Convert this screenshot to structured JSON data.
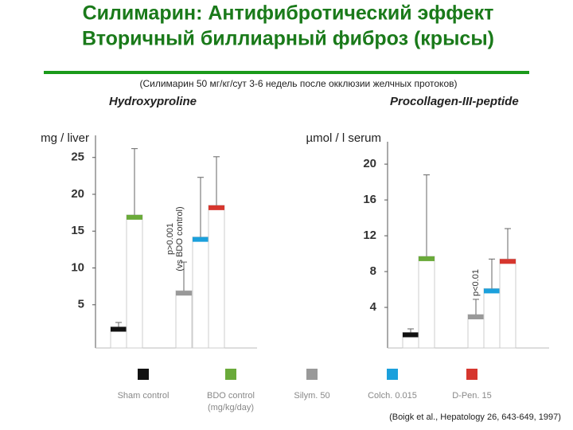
{
  "title": [
    "Силимарин: Антифибротический эффект",
    "Вторичный биллиарный фиброз (крысы)"
  ],
  "subtitle": "(Силимарин 50 мг/кг/сут 3-6 недель после окклюзии желчных протоков)",
  "legend": [
    {
      "label": "Sham control",
      "color": "#111111"
    },
    {
      "label": "BDO control",
      "color": "#6aaa3a"
    },
    {
      "label": "Silym. 50",
      "color": "#999999"
    },
    {
      "label": "Colch. 0.015",
      "color": "#1ba0dc"
    },
    {
      "label": "D-Pen. 15",
      "color": "#d6362e"
    }
  ],
  "legend_note": "(mg/kg/day)",
  "source": "(Boigk et al., Hepatology 26, 643-649, 1997)",
  "chart_data": [
    {
      "type": "bar",
      "title": "Hydroxyproline",
      "ylabel": "mg / liver",
      "values": [
        2.0,
        17.2,
        6.9,
        14.2,
        18.5
      ],
      "errors": [
        0.6,
        9.0,
        3.9,
        8.1,
        6.6
      ],
      "ylim": [
        0,
        28
      ],
      "yticks": [
        5,
        10,
        15,
        20,
        25
      ],
      "annotation": [
        "p>0.001",
        "(vs BDO control)"
      ]
    },
    {
      "type": "bar",
      "title": "Procollagen-III-peptide",
      "ylabel": "µmol / l serum",
      "values": [
        1.2,
        9.7,
        3.2,
        6.1,
        9.4
      ],
      "errors": [
        0.4,
        9.1,
        1.7,
        3.3,
        3.4
      ],
      "ylim": [
        0,
        22.5
      ],
      "yticks": [
        4,
        8,
        12,
        16,
        20
      ],
      "annotation": [
        "p<0.01"
      ]
    }
  ]
}
